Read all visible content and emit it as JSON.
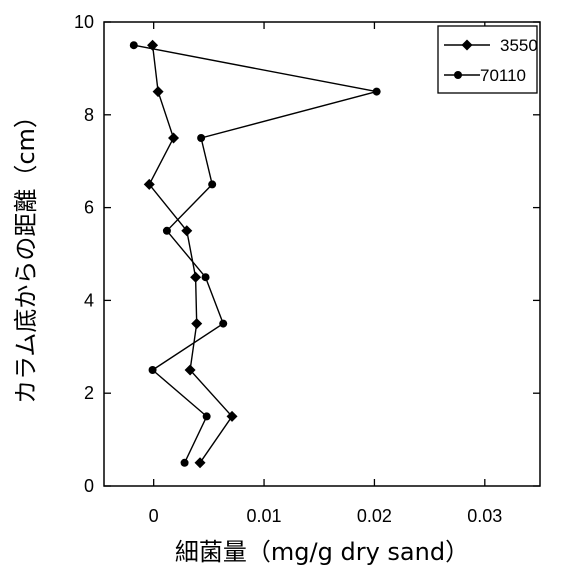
{
  "chart_data": {
    "type": "line",
    "title": "",
    "xlabel": "細菌量（mg/g dry sand）",
    "ylabel": "カラム底からの距離（cm）",
    "xlim": [
      -0.0045,
      0.035
    ],
    "ylim": [
      0,
      10
    ],
    "x_ticks": [
      {
        "value": 0,
        "label": "0"
      },
      {
        "value": 0.01,
        "label": "0.01"
      },
      {
        "value": 0.02,
        "label": "0.02"
      },
      {
        "value": 0.03,
        "label": "0.03"
      }
    ],
    "y_ticks": [
      {
        "value": 0,
        "label": "0"
      },
      {
        "value": 2,
        "label": "2"
      },
      {
        "value": 4,
        "label": "4"
      },
      {
        "value": 6,
        "label": "6"
      },
      {
        "value": 8,
        "label": "8"
      },
      {
        "value": 10,
        "label": "10"
      }
    ],
    "grid": false,
    "legend_position": "top-right",
    "series": [
      {
        "name": "3550",
        "marker": "diamond",
        "color": "#000000",
        "points": [
          {
            "x": 0.0042,
            "y": 0.5
          },
          {
            "x": 0.0071,
            "y": 1.5
          },
          {
            "x": 0.0033,
            "y": 2.5
          },
          {
            "x": 0.0039,
            "y": 3.5
          },
          {
            "x": 0.0038,
            "y": 4.5
          },
          {
            "x": 0.003,
            "y": 5.5
          },
          {
            "x": -0.0004,
            "y": 6.5
          },
          {
            "x": 0.0018,
            "y": 7.5
          },
          {
            "x": 0.0004,
            "y": 8.5
          },
          {
            "x": -0.0001,
            "y": 9.5
          }
        ]
      },
      {
        "name": "70110",
        "marker": "circle",
        "color": "#000000",
        "points": [
          {
            "x": 0.0028,
            "y": 0.5
          },
          {
            "x": 0.0048,
            "y": 1.5
          },
          {
            "x": -0.0001,
            "y": 2.5
          },
          {
            "x": 0.0063,
            "y": 3.5
          },
          {
            "x": 0.0047,
            "y": 4.5
          },
          {
            "x": 0.0012,
            "y": 5.5
          },
          {
            "x": 0.0053,
            "y": 6.5
          },
          {
            "x": 0.0043,
            "y": 7.5
          },
          {
            "x": 0.0202,
            "y": 8.5
          },
          {
            "x": -0.0018,
            "y": 9.5
          }
        ]
      }
    ]
  }
}
